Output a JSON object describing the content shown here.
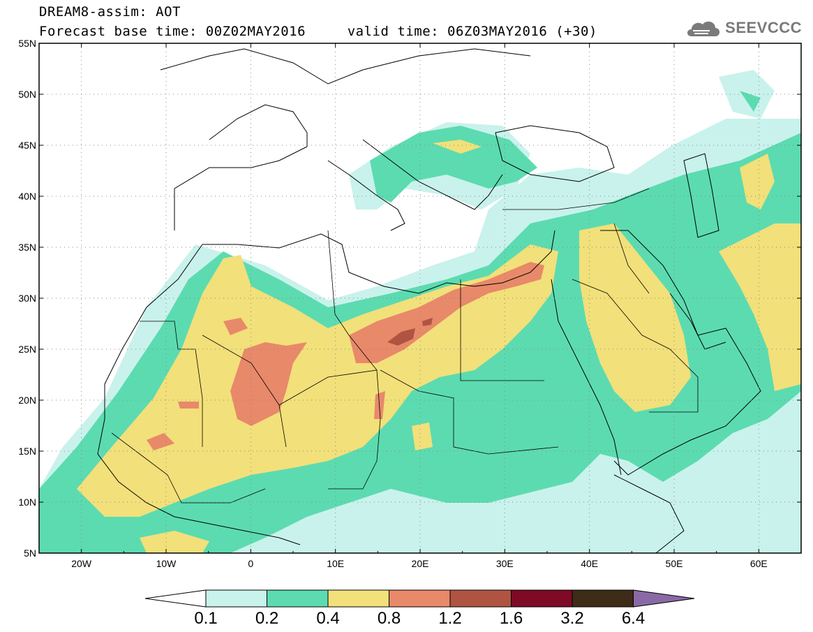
{
  "header": {
    "title_line1": "DREAM8-assim: AOT",
    "title_line2": "Forecast base time: 00Z02MAY2016     valid time: 06Z03MAY2016 (+30)",
    "logo_text": "SEEVCCC",
    "logo_icon": "cloud-icon"
  },
  "map": {
    "projection": "lat-lon",
    "lon_range": [
      -25,
      65
    ],
    "lat_range": [
      5,
      55
    ],
    "lat_ticks": [
      "55N",
      "50N",
      "45N",
      "40N",
      "35N",
      "30N",
      "25N",
      "20N",
      "15N",
      "10N",
      "5N"
    ],
    "lon_ticks": [
      "20W",
      "10W",
      "0",
      "10E",
      "20E",
      "30E",
      "40E",
      "50E",
      "60E"
    ],
    "gridlines": "dotted"
  },
  "colorbar": {
    "labels": [
      "0.1",
      "0.2",
      "0.4",
      "0.8",
      "1.2",
      "1.6",
      "3.2",
      "6.4"
    ],
    "colors": [
      "#ffffff",
      "#c9f2ec",
      "#5cdbb0",
      "#f2e07a",
      "#e8896a",
      "#b05442",
      "#7e0a26",
      "#3e2b18",
      "#8a6aa6"
    ]
  }
}
